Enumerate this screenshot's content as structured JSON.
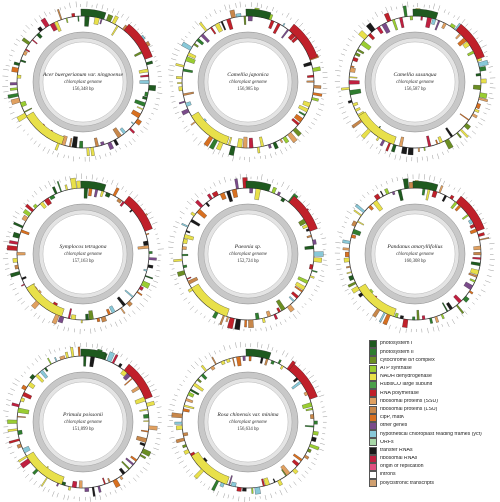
{
  "maps": [
    {
      "species": "Acer buergerianum var. ningpoense",
      "genome": "chloroplast genome",
      "size": "156,348 bp"
    },
    {
      "species": "Camellia japonica",
      "genome": "chloroplast genome",
      "size": "156,985 bp"
    },
    {
      "species": "Camellia sasanqua",
      "genome": "chloroplast genome",
      "size": "156,587 bp"
    },
    {
      "species": "Symplocos tetragona",
      "genome": "chloroplast genome",
      "size": "157,163 bp"
    },
    {
      "species": "Paeonia sp.",
      "genome": "chloroplast genome",
      "size": "152,724 bp"
    },
    {
      "species": "Pandanus amaryllifolius",
      "genome": "chloroplast genome",
      "size": "160,308 bp"
    },
    {
      "species": "Primula poissonii",
      "genome": "chloroplast genome",
      "size": "151,899 bp"
    },
    {
      "species": "Rosa chinensis var. minima",
      "genome": "chloroplast genome",
      "size": "156,634 bp"
    }
  ],
  "legend": [
    {
      "label": "photosystem I",
      "color": "#1f5a1f"
    },
    {
      "label": "photosystem II",
      "color": "#2f7d2f"
    },
    {
      "label": "cytochrome b/f complex",
      "color": "#6b8e23"
    },
    {
      "label": "ATP synthase",
      "color": "#9acd32"
    },
    {
      "label": "NADH dehydrogenase",
      "color": "#e8e04a"
    },
    {
      "label": "RubisCO large subunit",
      "color": "#4aa04a"
    },
    {
      "label": "RNA polymerase",
      "color": "#c0202a"
    },
    {
      "label": "ribosomal proteins (SSU)",
      "color": "#e0a060"
    },
    {
      "label": "ribosomal proteins (LSU)",
      "color": "#c8874a"
    },
    {
      "label": "clpP, matK",
      "color": "#d87020"
    },
    {
      "label": "other genes",
      "color": "#7a4b8a"
    },
    {
      "label": "hypothetical chloroplast reading frames (ycf)",
      "color": "#88c8d8"
    },
    {
      "label": "ORFs",
      "color": "#a8d8a8"
    },
    {
      "label": "transfer RNAs",
      "color": "#1a1a1a"
    },
    {
      "label": "ribosomal RNAs",
      "color": "#c02040"
    },
    {
      "label": "origin of replication",
      "color": "#e05080"
    },
    {
      "label": "introns",
      "color": "#ffffff"
    },
    {
      "label": "polycistronic transcripts",
      "color": "#d0a070"
    }
  ]
}
